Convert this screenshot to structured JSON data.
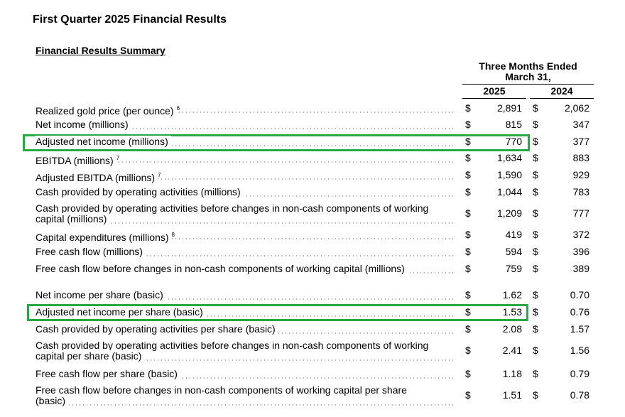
{
  "document": {
    "title": "First Quarter 2025 Financial Results",
    "section_title": "Financial Results Summary"
  },
  "header": {
    "period_line1": "Three Months Ended",
    "period_line2": "March 31,",
    "year_2025": "2025",
    "year_2024": "2024"
  },
  "rows": [
    {
      "label": "Realized gold price (per ounce)",
      "sup": "6",
      "currency": "$",
      "v2025": "2,891",
      "v2024": "2,062"
    },
    {
      "label": "Net income (millions)",
      "sup": "",
      "currency": "$",
      "v2025": "815",
      "v2024": "347"
    },
    {
      "label": "Adjusted net income (millions)",
      "sup": "",
      "currency": "$",
      "v2025": "770",
      "v2024": "377"
    },
    {
      "label": "EBITDA (millions)",
      "sup": "7",
      "currency": "$",
      "v2025": "1,634",
      "v2024": "883"
    },
    {
      "label": "Adjusted EBITDA (millions)",
      "sup": "7",
      "currency": "$",
      "v2025": "1,590",
      "v2024": "929"
    },
    {
      "label": "Cash provided by operating activities (millions)",
      "sup": "",
      "currency": "$",
      "v2025": "1,044",
      "v2024": "783"
    },
    {
      "label": "Cash provided by operating activities before changes in non-cash components of working",
      "label2": "capital (millions)",
      "sup": "",
      "currency": "$",
      "v2025": "1,209",
      "v2024": "777"
    },
    {
      "label": "Capital expenditures (millions)",
      "sup": "8",
      "currency": "$",
      "v2025": "419",
      "v2024": "372"
    },
    {
      "label": "Free cash flow (millions)",
      "sup": "",
      "currency": "$",
      "v2025": "594",
      "v2024": "396"
    },
    {
      "label": "Free cash flow before changes in non-cash components of working capital (millions)",
      "sup": "",
      "currency": "$",
      "v2025": "759",
      "v2024": "389"
    },
    {
      "label": "Net income per share (basic)",
      "sup": "",
      "currency": "$",
      "v2025": "1.62",
      "v2024": "0.70"
    },
    {
      "label": "Adjusted net income per share (basic)",
      "sup": "",
      "currency": "$",
      "v2025": "1.53",
      "v2024": "0.76"
    },
    {
      "label": "Cash provided by operating activities per share (basic)",
      "sup": "",
      "currency": "$",
      "v2025": "2.08",
      "v2024": "1.57"
    },
    {
      "label": "Cash provided by operating activities before changes in non-cash components of working",
      "label2": "capital per share (basic)",
      "sup": "",
      "currency": "$",
      "v2025": "2.41",
      "v2024": "1.56"
    },
    {
      "label": "Free cash flow per share (basic)",
      "sup": "",
      "currency": "$",
      "v2025": "1.18",
      "v2024": "0.79"
    },
    {
      "label": "Free cash flow before changes in non-cash components of working capital per share",
      "label2": "(basic)",
      "sup": "",
      "currency": "$",
      "v2025": "1.51",
      "v2024": "0.78"
    }
  ],
  "highlight_color": "#27a844"
}
